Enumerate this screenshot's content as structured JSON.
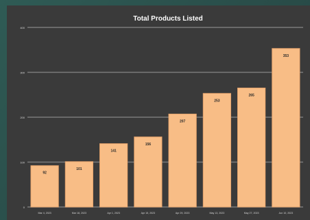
{
  "chart_data": {
    "type": "bar",
    "title": "Total Products Listed",
    "xlabel": "",
    "ylabel": "",
    "categories": [
      "Mar 4, 2023",
      "Mar 18, 2023",
      "Apr 1, 2023",
      "Apr 15, 2023",
      "Apr 29, 2023",
      "May 13, 2023",
      "May 27, 2023",
      "Jun 10, 2023"
    ],
    "values": [
      92,
      101,
      141,
      156,
      207,
      253,
      265,
      353
    ],
    "ylim": [
      0,
      400
    ],
    "yticks": [
      0,
      100,
      200,
      300,
      400
    ],
    "grid": true,
    "legend": "none",
    "colors": {
      "background": "#3a3a3a",
      "bar": "#f8bd86",
      "bar_edge": "#e9a66e",
      "grid": "#7a7a7a",
      "text": "#ffffff",
      "label_text": "#2a2a2a",
      "outer": "#2d4d4a"
    }
  }
}
